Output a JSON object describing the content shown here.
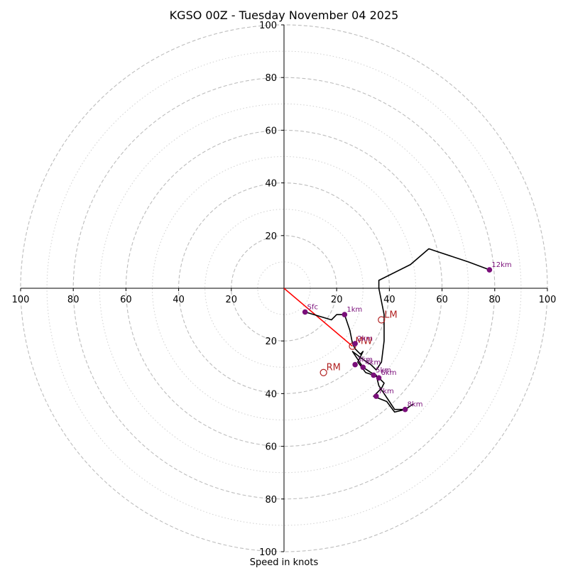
{
  "chart_data": {
    "type": "hodograph",
    "title": "KGSO 00Z - Tuesday November 04 2025",
    "xlabel": "Speed in knots",
    "xlim": [
      -100,
      100
    ],
    "ylim": [
      -100,
      100
    ],
    "major_rings": [
      20,
      40,
      60,
      80,
      100
    ],
    "minor_rings": [
      10,
      30,
      50,
      70,
      90
    ],
    "x_ticks": [
      {
        "value": -100,
        "label": "100"
      },
      {
        "value": -80,
        "label": "80"
      },
      {
        "value": -60,
        "label": "60"
      },
      {
        "value": -40,
        "label": "40"
      },
      {
        "value": -20,
        "label": "20"
      },
      {
        "value": 20,
        "label": "20"
      },
      {
        "value": 40,
        "label": "40"
      },
      {
        "value": 60,
        "label": "60"
      },
      {
        "value": 80,
        "label": "80"
      },
      {
        "value": 100,
        "label": "100"
      }
    ],
    "y_ticks": [
      {
        "value": 100,
        "label": "100"
      },
      {
        "value": 80,
        "label": "80"
      },
      {
        "value": 60,
        "label": "60"
      },
      {
        "value": 40,
        "label": "40"
      },
      {
        "value": 20,
        "label": "20"
      },
      {
        "value": -20,
        "label": "20"
      },
      {
        "value": -40,
        "label": "40"
      },
      {
        "value": -60,
        "label": "60"
      },
      {
        "value": -80,
        "label": "80"
      },
      {
        "value": -100,
        "label": "100"
      }
    ],
    "trace_color": "#000000",
    "trace": [
      [
        8,
        -9
      ],
      [
        18,
        -12
      ],
      [
        20,
        -10
      ],
      [
        23,
        -10
      ],
      [
        25,
        -16
      ],
      [
        26,
        -21
      ],
      [
        27,
        -23
      ],
      [
        29,
        -25
      ],
      [
        30,
        -24
      ],
      [
        28,
        -28
      ],
      [
        31,
        -32
      ],
      [
        34,
        -33
      ],
      [
        36,
        -34
      ],
      [
        38,
        -36
      ],
      [
        37,
        -38
      ],
      [
        34,
        -41
      ],
      [
        39,
        -43
      ],
      [
        42,
        -47
      ],
      [
        46,
        -46
      ],
      [
        49,
        -44
      ],
      [
        46,
        -46
      ],
      [
        42,
        -46
      ],
      [
        40,
        -43
      ],
      [
        38,
        -40
      ],
      [
        36,
        -37
      ],
      [
        35,
        -33
      ],
      [
        33,
        -32
      ],
      [
        30,
        -30
      ],
      [
        28,
        -27
      ],
      [
        26,
        -24
      ],
      [
        30,
        -27
      ],
      [
        33,
        -29
      ],
      [
        35,
        -31
      ],
      [
        37,
        -28
      ],
      [
        38,
        -20
      ],
      [
        38,
        -10
      ],
      [
        36,
        0
      ],
      [
        36,
        3
      ],
      [
        48,
        9
      ],
      [
        55,
        15
      ],
      [
        58,
        14
      ],
      [
        70,
        10
      ],
      [
        78,
        7
      ]
    ],
    "height_markers": [
      {
        "label": "Sfc",
        "u": 8,
        "v": -9
      },
      {
        "label": "1km",
        "u": 23,
        "v": -10
      },
      {
        "label": "2km",
        "u": 27,
        "v": -21
      },
      {
        "label": "3km",
        "u": 27,
        "v": -29
      },
      {
        "label": "4km",
        "u": 30,
        "v": -30
      },
      {
        "label": "5km",
        "u": 34,
        "v": -33
      },
      {
        "label": "6km",
        "u": 36,
        "v": -34
      },
      {
        "label": "7km",
        "u": 35,
        "v": -41
      },
      {
        "label": "8km",
        "u": 46,
        "v": -46
      },
      {
        "label": "12km",
        "u": 78,
        "v": 7
      }
    ],
    "marker_color": "#7a0f7a",
    "storm_motion": [
      {
        "label": "LM",
        "u": 37,
        "v": -12
      },
      {
        "label": "MW",
        "u": 26,
        "v": -22
      },
      {
        "label": "RM",
        "u": 15,
        "v": -32
      }
    ],
    "storm_color": "#b22222",
    "shear_vector": {
      "from": [
        0,
        0
      ],
      "to": [
        26,
        -22
      ],
      "color": "#ff0000"
    }
  }
}
